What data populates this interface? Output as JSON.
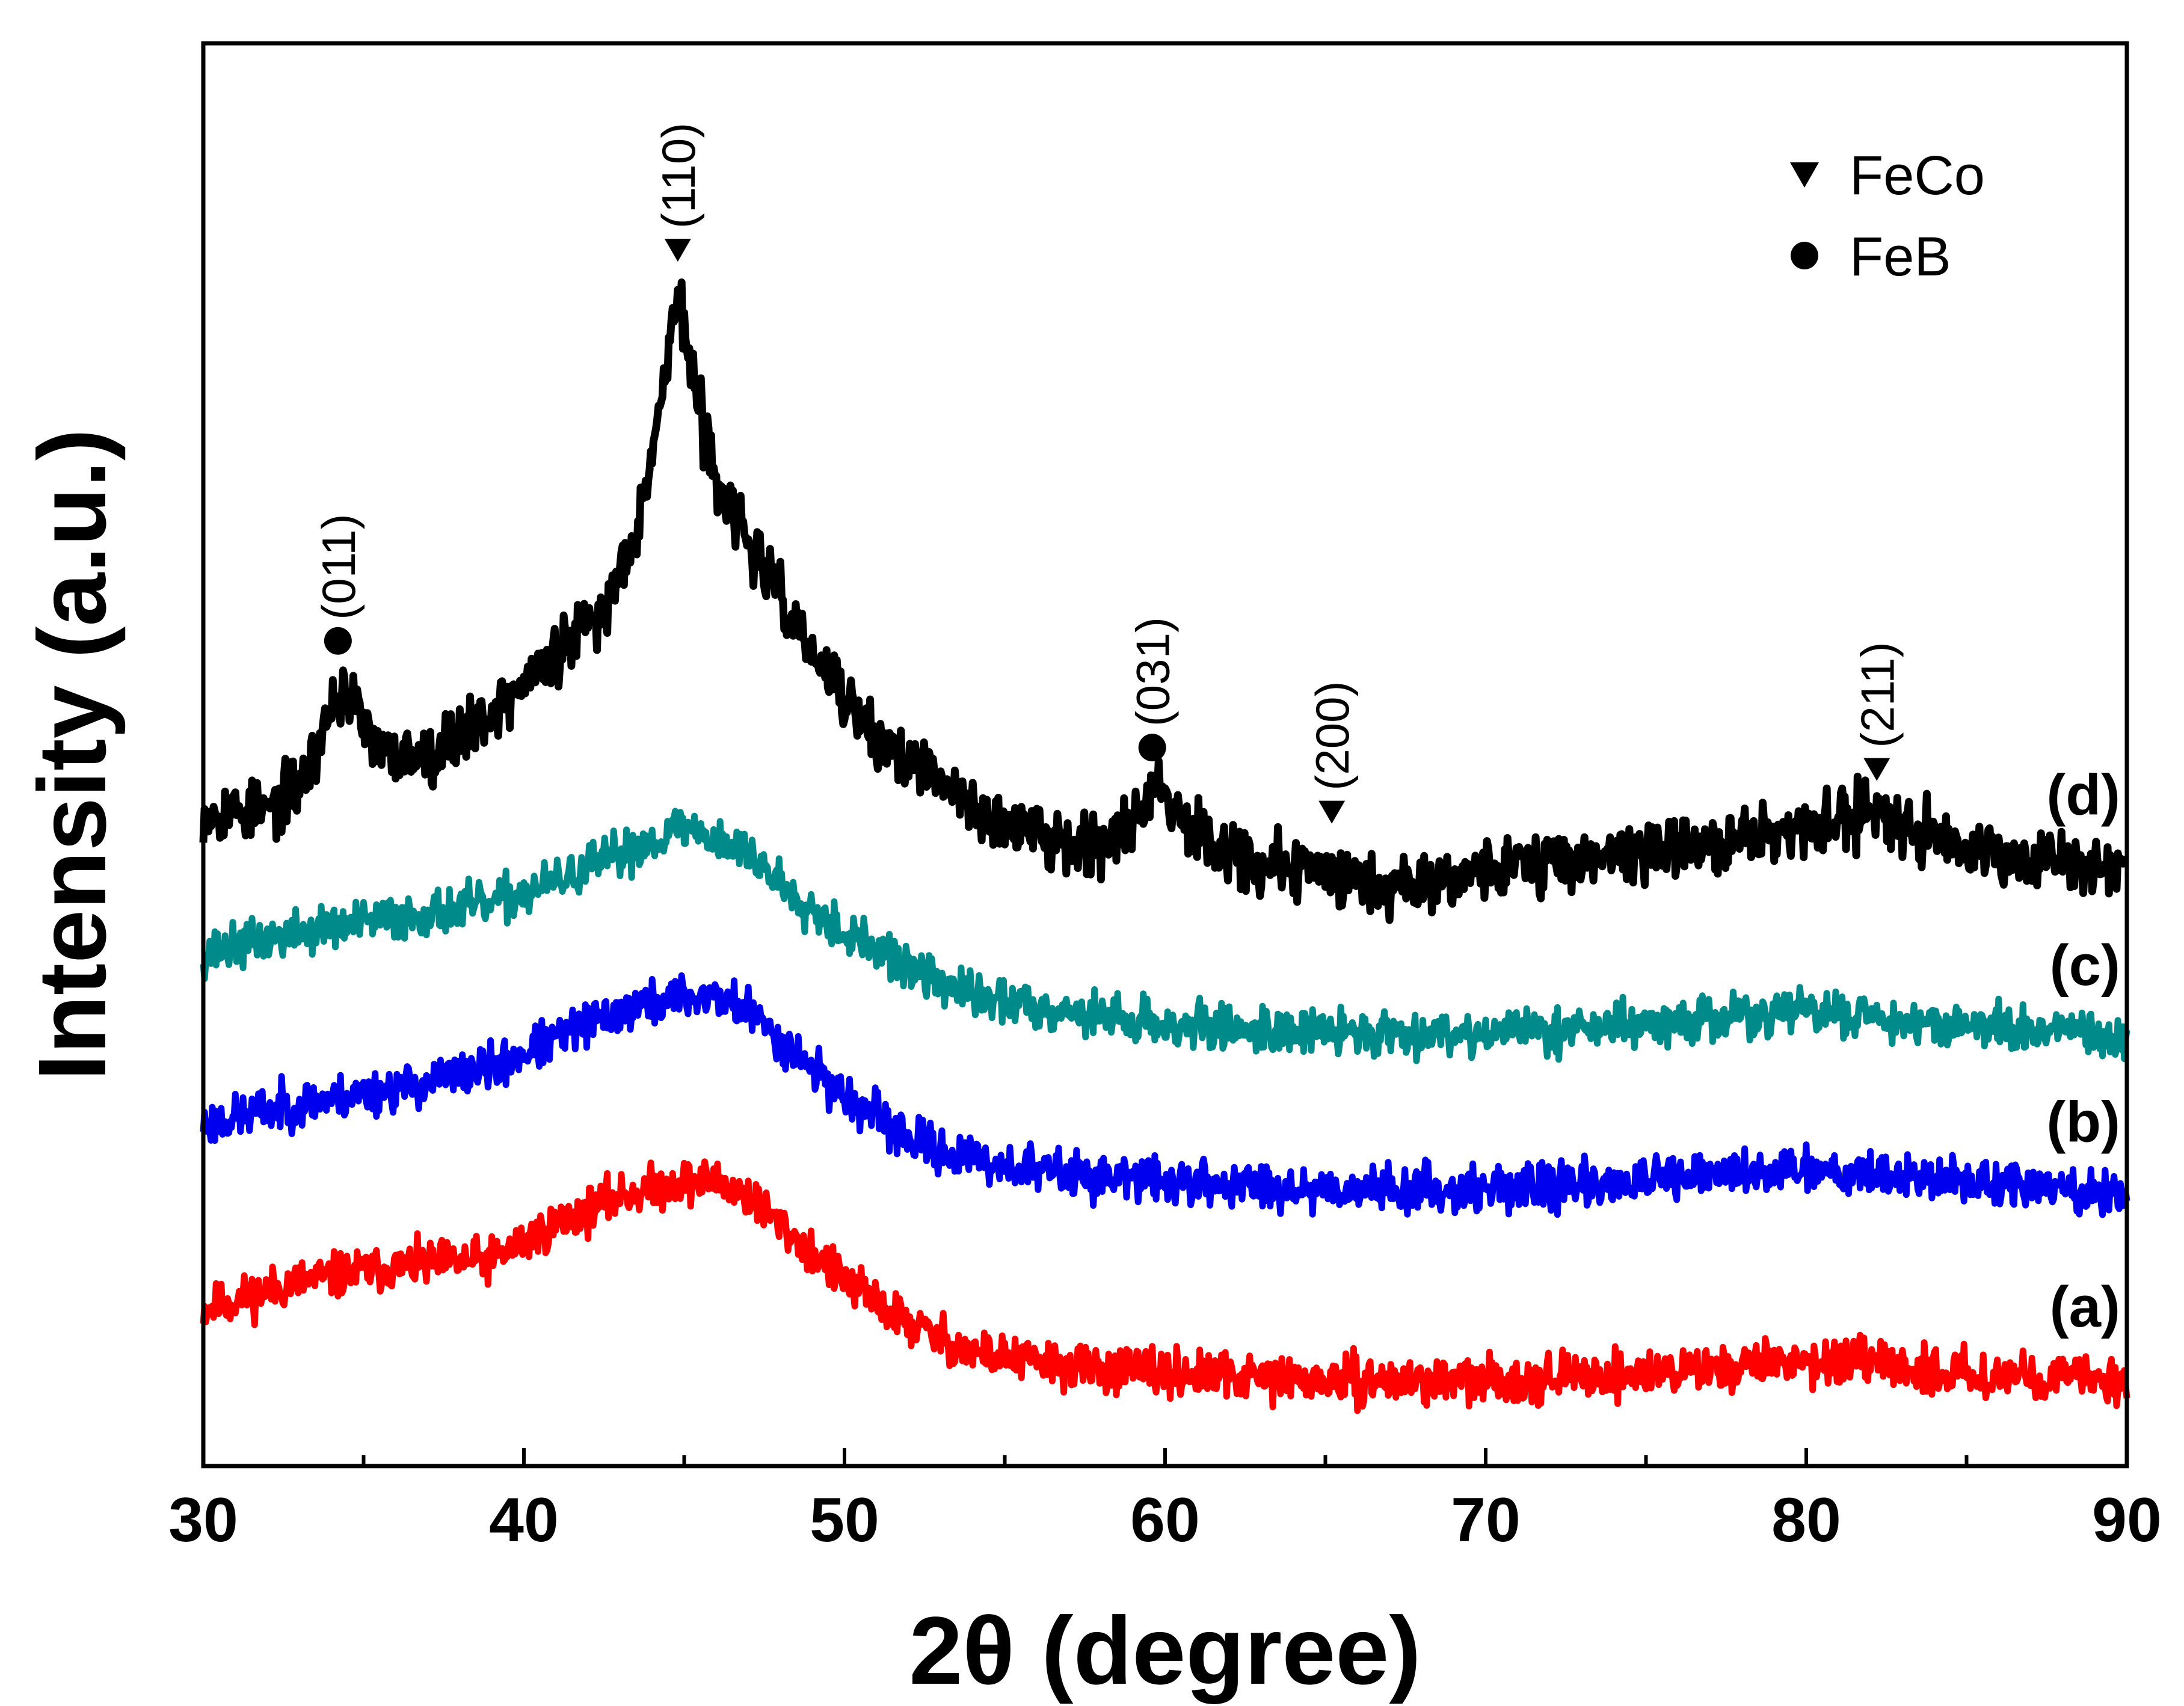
{
  "chart_data": {
    "type": "line",
    "title": "",
    "xlabel": "2θ (degree)",
    "ylabel": "Intensity (a.u.)",
    "xlim": [
      30,
      90
    ],
    "ylim": [
      0,
      1
    ],
    "x_ticks": [
      30,
      40,
      50,
      60,
      70,
      80,
      90
    ],
    "x_tick_labels": [
      "30",
      "40",
      "50",
      "60",
      "70",
      "80",
      "90"
    ],
    "y_ticks": [],
    "grid": false,
    "legend": {
      "placement": "top-right",
      "entries": [
        {
          "marker": "triangle-down",
          "label": "FeCo"
        },
        {
          "marker": "circle",
          "label": "FeB"
        }
      ]
    },
    "series": [
      {
        "name": "(a)",
        "color": "#ff0000",
        "noise": 0.012,
        "seed": 11,
        "x": [
          30,
          33,
          36,
          39,
          41,
          43,
          45,
          46,
          47,
          48,
          50,
          52,
          54,
          57,
          60,
          65,
          70,
          75,
          80,
          85,
          90
        ],
        "y": [
          0.11,
          0.13,
          0.14,
          0.145,
          0.17,
          0.19,
          0.2,
          0.2,
          0.19,
          0.17,
          0.13,
          0.1,
          0.08,
          0.07,
          0.065,
          0.06,
          0.06,
          0.065,
          0.075,
          0.065,
          0.06
        ]
      },
      {
        "name": "(b)",
        "color": "#0000ee",
        "noise": 0.012,
        "seed": 23,
        "x": [
          30,
          33,
          36,
          39,
          41,
          43,
          45,
          46,
          47,
          48,
          50,
          52,
          54,
          57,
          60,
          65,
          70,
          75,
          80,
          85,
          90
        ],
        "y": [
          0.24,
          0.255,
          0.265,
          0.28,
          0.3,
          0.32,
          0.33,
          0.33,
          0.32,
          0.3,
          0.26,
          0.23,
          0.215,
          0.205,
          0.2,
          0.195,
          0.195,
          0.2,
          0.21,
          0.2,
          0.19
        ]
      },
      {
        "name": "(c)",
        "color": "#008b8b",
        "noise": 0.012,
        "seed": 37,
        "x": [
          30,
          33,
          36,
          39,
          41,
          43,
          45,
          46,
          47,
          48,
          50,
          52,
          54,
          57,
          60,
          65,
          70,
          75,
          80,
          85,
          90
        ],
        "y": [
          0.36,
          0.375,
          0.385,
          0.395,
          0.41,
          0.43,
          0.45,
          0.44,
          0.43,
          0.41,
          0.375,
          0.35,
          0.33,
          0.32,
          0.31,
          0.305,
          0.305,
          0.31,
          0.32,
          0.31,
          0.3
        ]
      },
      {
        "name": "(d)",
        "color": "#000000",
        "noise": 0.016,
        "seed": 53,
        "x": [
          30,
          32,
          33,
          33.5,
          34,
          34.4,
          34.8,
          35.5,
          37,
          39,
          41,
          42.5,
          43.5,
          44.3,
          44.8,
          45.2,
          45.8,
          46.5,
          47.5,
          49,
          51,
          53,
          55,
          57,
          58.5,
          59.3,
          59.8,
          60.4,
          61.5,
          63,
          65,
          66.5,
          68,
          70,
          74,
          78,
          80.5,
          82,
          83.5,
          86,
          90
        ],
        "y": [
          0.46,
          0.46,
          0.48,
          0.5,
          0.535,
          0.545,
          0.53,
          0.5,
          0.5,
          0.53,
          0.57,
          0.6,
          0.66,
          0.75,
          0.83,
          0.77,
          0.71,
          0.67,
          0.63,
          0.57,
          0.51,
          0.48,
          0.45,
          0.44,
          0.44,
          0.465,
          0.48,
          0.46,
          0.44,
          0.42,
          0.42,
          0.41,
          0.41,
          0.42,
          0.43,
          0.44,
          0.45,
          0.46,
          0.45,
          0.43,
          0.42
        ]
      }
    ],
    "peak_annotations": [
      {
        "x": 34.2,
        "y": 0.58,
        "phase": "FeB",
        "marker": "circle",
        "label": "(011)"
      },
      {
        "x": 44.8,
        "y": 0.855,
        "phase": "FeCo",
        "marker": "triangle-down",
        "label": "(110)"
      },
      {
        "x": 59.6,
        "y": 0.505,
        "phase": "FeB",
        "marker": "circle",
        "label": "(031)"
      },
      {
        "x": 65.2,
        "y": 0.46,
        "phase": "FeCo",
        "marker": "triangle-down",
        "label": "(200)"
      },
      {
        "x": 82.2,
        "y": 0.49,
        "phase": "FeCo",
        "marker": "triangle-down",
        "label": "(211)"
      }
    ]
  }
}
